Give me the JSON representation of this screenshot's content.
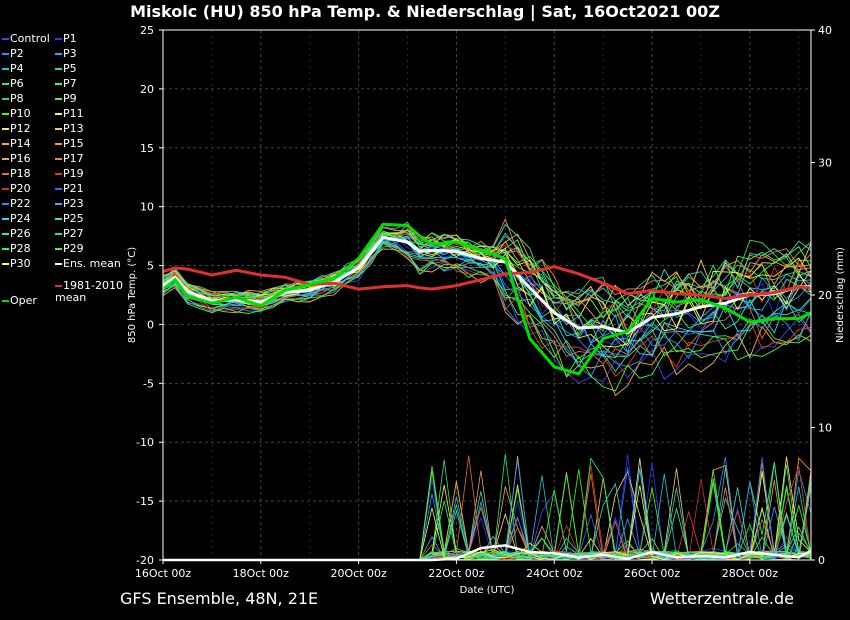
{
  "header": {
    "title": "Miskolc  (HU)  850 hPa Temp. & Niederschlag | Sat, 16Oct2021 00Z"
  },
  "footer": {
    "left": "GFS Ensemble, 48N, 21E",
    "right": "Wetterzentrale.de"
  },
  "colors": {
    "ens_mean": "#ffffff",
    "climate": "#e03030",
    "oper": "#00e000",
    "members": [
      "#4040ff",
      "#3030ff",
      "#2090ff",
      "#2aa6ff",
      "#28c0e0",
      "#30d0c0",
      "#30e090",
      "#40ff40",
      "#40d070",
      "#70e040",
      "#40ff00",
      "#ffff20",
      "#ffe070",
      "#f0d060",
      "#f0b030",
      "#ffa020",
      "#f0a070",
      "#f08050",
      "#e07030",
      "#e04020",
      "#d03020",
      "#3070ff",
      "#3090ff",
      "#30b0ff",
      "#30d0ff",
      "#30e0c0",
      "#20f0a0",
      "#30e070",
      "#20ff40",
      "#40ff20",
      "#ffff30"
    ]
  },
  "chart_data": {
    "type": "line",
    "title": "Miskolc  (HU)  850 hPa Temp. & Niederschlag | Sat, 16Oct2021 00Z",
    "xlabel": "Date (UTC)",
    "ylabel": "850 hPa Temp. (°C)",
    "y2label": "Niederschlag (mm)",
    "xlim": [
      0,
      13.25
    ],
    "ylim": [
      -20,
      25
    ],
    "y2lim": [
      0,
      40
    ],
    "x_ticks": [
      0,
      2,
      4,
      6,
      8,
      10,
      12
    ],
    "x_tick_labels": [
      "16Oct 00z",
      "18Oct 00z",
      "20Oct 00z",
      "22Oct 00z",
      "24Oct 00z",
      "26Oct 00z",
      "28Oct 00z"
    ],
    "y_ticks": [
      -20,
      -15,
      -10,
      -5,
      0,
      5,
      10,
      15,
      20,
      25
    ],
    "y2_ticks": [
      0,
      10,
      20,
      30,
      40
    ],
    "grid": true,
    "legend_position": "left",
    "legend": [
      "Control",
      "P1",
      "P2",
      "P3",
      "P4",
      "P5",
      "P6",
      "P7",
      "P8",
      "P9",
      "P10",
      "P11",
      "P12",
      "P13",
      "P14",
      "P15",
      "P16",
      "P17",
      "P18",
      "P19",
      "P20",
      "P21",
      "P22",
      "P23",
      "P24",
      "P25",
      "P26",
      "P27",
      "P28",
      "P29",
      "P30",
      "Ens. mean",
      "Oper",
      "1981-2010 mean"
    ],
    "series": [
      {
        "name": "Ens. mean",
        "x": [
          0,
          0.25,
          0.5,
          1,
          1.5,
          2,
          2.5,
          3,
          3.5,
          4,
          4.5,
          5,
          5.25,
          5.5,
          6,
          6.5,
          7,
          7.5,
          8,
          8.5,
          9,
          9.5,
          10,
          10.5,
          11,
          11.5,
          12,
          12.5,
          13,
          13.25
        ],
        "values": [
          3.3,
          4.0,
          2.8,
          2.0,
          2.1,
          1.9,
          2.7,
          2.9,
          3.6,
          4.8,
          7.4,
          7.0,
          6.2,
          6.3,
          6.2,
          5.6,
          5.3,
          3.1,
          1.0,
          -0.3,
          -0.2,
          -0.7,
          0.6,
          0.9,
          1.5,
          1.8,
          2.5,
          2.6,
          3.2,
          3.2
        ]
      },
      {
        "name": "1981-2010 mean",
        "x": [
          0,
          0.25,
          0.5,
          1,
          1.5,
          2,
          2.5,
          3,
          3.5,
          4,
          4.5,
          5,
          5.25,
          5.5,
          6,
          6.5,
          7,
          7.5,
          8,
          8.5,
          9,
          9.5,
          10,
          10.5,
          11,
          11.5,
          12,
          12.5,
          13,
          13.25
        ],
        "values": [
          4.5,
          4.8,
          4.7,
          4.2,
          4.6,
          4.2,
          4.0,
          3.4,
          3.5,
          3.0,
          3.2,
          3.3,
          3.1,
          3.0,
          3.3,
          3.8,
          4.3,
          4.4,
          4.9,
          4.3,
          3.5,
          2.6,
          2.9,
          2.6,
          2.5,
          2.2,
          2.5,
          2.7,
          3.2,
          3.1
        ]
      },
      {
        "name": "Oper",
        "x": [
          0,
          0.25,
          0.5,
          1,
          1.5,
          2,
          2.5,
          3,
          3.5,
          4,
          4.5,
          5,
          5.25,
          5.5,
          6,
          6.5,
          7,
          7.5,
          8,
          8.5,
          9,
          9.5,
          10,
          10.5,
          11,
          11.5,
          12,
          12.5,
          13,
          13.25
        ],
        "values": [
          3.0,
          3.8,
          2.4,
          1.8,
          2.3,
          1.6,
          2.9,
          3.4,
          3.9,
          5.6,
          8.5,
          8.4,
          7.5,
          6.8,
          7.0,
          6.3,
          5.6,
          -1.2,
          -3.6,
          -4.2,
          -1.2,
          -0.6,
          2.2,
          1.9,
          2.1,
          1.4,
          0.2,
          0.5,
          0.5,
          1.0
        ]
      },
      {
        "name": "Precip ens. mean",
        "axis": "y2",
        "x": [
          0,
          2,
          4,
          5,
          5.5,
          6,
          6.25,
          6.5,
          7,
          7.5,
          8,
          8.5,
          9,
          9.5,
          10,
          10.5,
          11,
          11.5,
          12,
          12.5,
          13,
          13.25
        ],
        "values": [
          0,
          0,
          0,
          0,
          0,
          0.1,
          0.5,
          0.9,
          1.1,
          0.6,
          0.5,
          0.2,
          0.4,
          0.1,
          0.6,
          0.2,
          0.3,
          0.2,
          0.6,
          0.4,
          0.2,
          0.7
        ]
      }
    ]
  }
}
